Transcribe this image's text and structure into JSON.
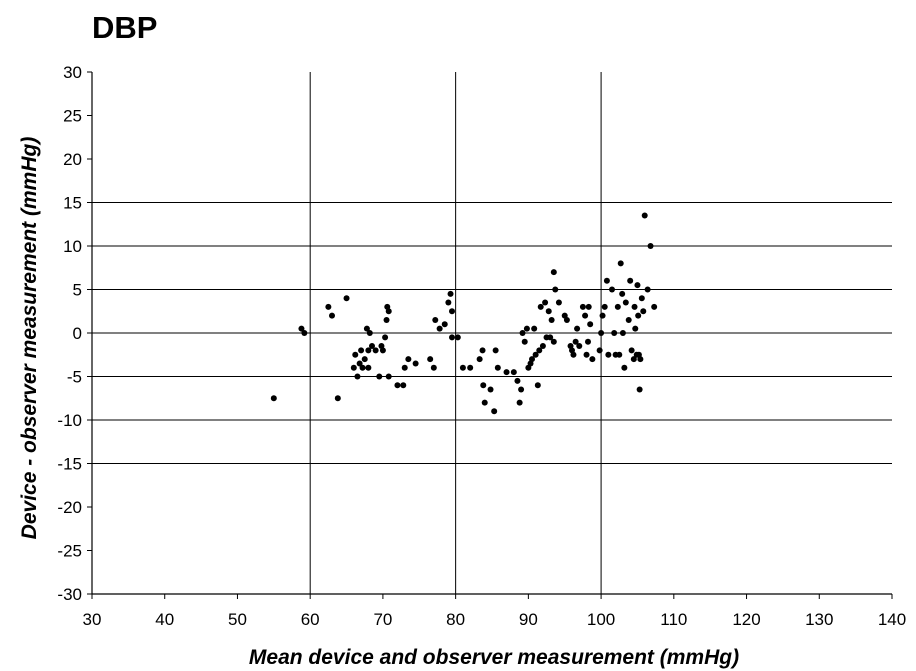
{
  "chart_data": {
    "type": "scatter",
    "title": "DBP",
    "xlabel": "Mean device and observer measurement (mmHg)",
    "ylabel": "Device - observer measurement (mmHg)",
    "xlim": [
      30,
      140
    ],
    "ylim": [
      -30,
      30
    ],
    "x_ticks": [
      30,
      40,
      50,
      60,
      70,
      80,
      90,
      100,
      110,
      120,
      130,
      140
    ],
    "y_ticks": [
      30,
      25,
      20,
      15,
      10,
      5,
      0,
      -5,
      -10,
      -15,
      -20,
      -25,
      -30
    ],
    "vertical_gridlines": [
      60,
      80,
      100
    ],
    "horizontal_gridlines": [
      15,
      10,
      5,
      0,
      -5,
      -10,
      -15
    ],
    "grid": true,
    "legend": false,
    "point_color": "#000000",
    "points": [
      [
        55,
        -7.5
      ],
      [
        58.8,
        0.5
      ],
      [
        59.2,
        0
      ],
      [
        62.5,
        3
      ],
      [
        63,
        2
      ],
      [
        63.8,
        -7.5
      ],
      [
        65,
        4
      ],
      [
        66,
        -4
      ],
      [
        66.2,
        -2.5
      ],
      [
        66.5,
        -5
      ],
      [
        66.8,
        -3.5
      ],
      [
        67,
        -2
      ],
      [
        67.2,
        -4
      ],
      [
        67.5,
        -3
      ],
      [
        67.8,
        0.5
      ],
      [
        68,
        -2
      ],
      [
        68.2,
        0
      ],
      [
        68.5,
        -1.5
      ],
      [
        68,
        -4
      ],
      [
        69,
        -2
      ],
      [
        69.5,
        -5
      ],
      [
        69.8,
        -1.5
      ],
      [
        70,
        -2
      ],
      [
        70.3,
        -0.5
      ],
      [
        70.5,
        1.5
      ],
      [
        70.6,
        3
      ],
      [
        70.8,
        2.5
      ],
      [
        70.8,
        -5
      ],
      [
        72,
        -6
      ],
      [
        72.8,
        -6
      ],
      [
        73,
        -4
      ],
      [
        73.5,
        -3
      ],
      [
        74.5,
        -3.5
      ],
      [
        76.5,
        -3
      ],
      [
        77,
        -4
      ],
      [
        77.2,
        1.5
      ],
      [
        77.8,
        0.5
      ],
      [
        78.5,
        1
      ],
      [
        79,
        3.5
      ],
      [
        79.3,
        4.5
      ],
      [
        79.5,
        2.5
      ],
      [
        79.5,
        -0.5
      ],
      [
        80.3,
        -0.5
      ],
      [
        81,
        -4
      ],
      [
        82,
        -4
      ],
      [
        83.3,
        -3
      ],
      [
        83.7,
        -2
      ],
      [
        83.8,
        -6
      ],
      [
        84,
        -8
      ],
      [
        84.8,
        -6.5
      ],
      [
        85.3,
        -9
      ],
      [
        85.5,
        -2
      ],
      [
        85.8,
        -4
      ],
      [
        87,
        -4.5
      ],
      [
        88,
        -4.5
      ],
      [
        88.5,
        -5.5
      ],
      [
        88.8,
        -8
      ],
      [
        89,
        -6.5
      ],
      [
        89.2,
        0
      ],
      [
        89.5,
        -1
      ],
      [
        89.8,
        0.5
      ],
      [
        90,
        -4
      ],
      [
        90.3,
        -3.5
      ],
      [
        90.5,
        -3
      ],
      [
        90.8,
        0.5
      ],
      [
        91,
        -2.5
      ],
      [
        91.3,
        -6
      ],
      [
        91.5,
        -2
      ],
      [
        91.7,
        3
      ],
      [
        92,
        -1.5
      ],
      [
        92.3,
        3.5
      ],
      [
        92.5,
        -0.5
      ],
      [
        92.8,
        2.5
      ],
      [
        93,
        -0.5
      ],
      [
        93.2,
        1.5
      ],
      [
        93.5,
        -1
      ],
      [
        93.5,
        7
      ],
      [
        93.7,
        5
      ],
      [
        94.2,
        3.5
      ],
      [
        95,
        2
      ],
      [
        95.3,
        1.5
      ],
      [
        95.8,
        -1.5
      ],
      [
        96,
        -2
      ],
      [
        96.2,
        -2.5
      ],
      [
        96.5,
        -1
      ],
      [
        96.7,
        0.5
      ],
      [
        97,
        -1.5
      ],
      [
        97.5,
        3
      ],
      [
        97.8,
        2
      ],
      [
        98,
        -2.5
      ],
      [
        98.2,
        -1
      ],
      [
        98.3,
        3
      ],
      [
        98.5,
        1
      ],
      [
        98.8,
        -3
      ],
      [
        99.8,
        -2
      ],
      [
        100,
        0
      ],
      [
        100.2,
        2
      ],
      [
        100.5,
        3
      ],
      [
        100.8,
        6
      ],
      [
        101,
        -2.5
      ],
      [
        101.5,
        5
      ],
      [
        101.8,
        0
      ],
      [
        102,
        -2.5
      ],
      [
        102.3,
        3
      ],
      [
        102.7,
        8
      ],
      [
        102.9,
        4.5
      ],
      [
        102.5,
        -2.5
      ],
      [
        103,
        0
      ],
      [
        103.2,
        -4
      ],
      [
        103.4,
        3.5
      ],
      [
        103.8,
        1.5
      ],
      [
        104,
        6
      ],
      [
        104.2,
        -2
      ],
      [
        104.5,
        -3
      ],
      [
        104.6,
        3
      ],
      [
        104.7,
        0.5
      ],
      [
        104.9,
        -2.5
      ],
      [
        105,
        5.5
      ],
      [
        105.1,
        2
      ],
      [
        105.3,
        -6.5
      ],
      [
        105.4,
        -3
      ],
      [
        105.6,
        4
      ],
      [
        105.8,
        2.5
      ],
      [
        106,
        13.5
      ],
      [
        106.4,
        5
      ],
      [
        106.8,
        10
      ],
      [
        107.3,
        3
      ],
      [
        105.2,
        -2.5
      ]
    ]
  }
}
